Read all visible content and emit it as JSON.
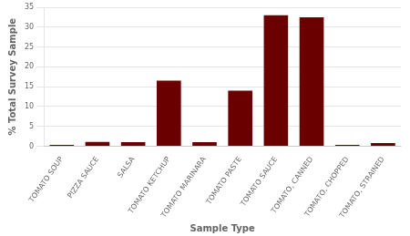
{
  "chart_data": {
    "type": "bar",
    "categories": [
      "TOMATO SOUP",
      "PIZZA SAUCE",
      "SALSA",
      "TOMATO KETCHUP",
      "TOMATO MARINARA",
      "TOMATO PASTE",
      "TOMATO SAUCE",
      "TOMATO, CANNED",
      "TOMATO, CHOPPED",
      "TOMATO, STRAINED"
    ],
    "values": [
      0.3,
      1.1,
      1.0,
      16.5,
      1.0,
      14.0,
      33.0,
      32.5,
      0.3,
      0.8
    ],
    "color": "#6B0000",
    "xlabel": "Sample Type",
    "ylabel": "% Total Survey Sample",
    "ylim": [
      0,
      35
    ],
    "yticks": [
      0,
      5,
      10,
      15,
      20,
      25,
      30,
      35
    ],
    "grid": true
  }
}
